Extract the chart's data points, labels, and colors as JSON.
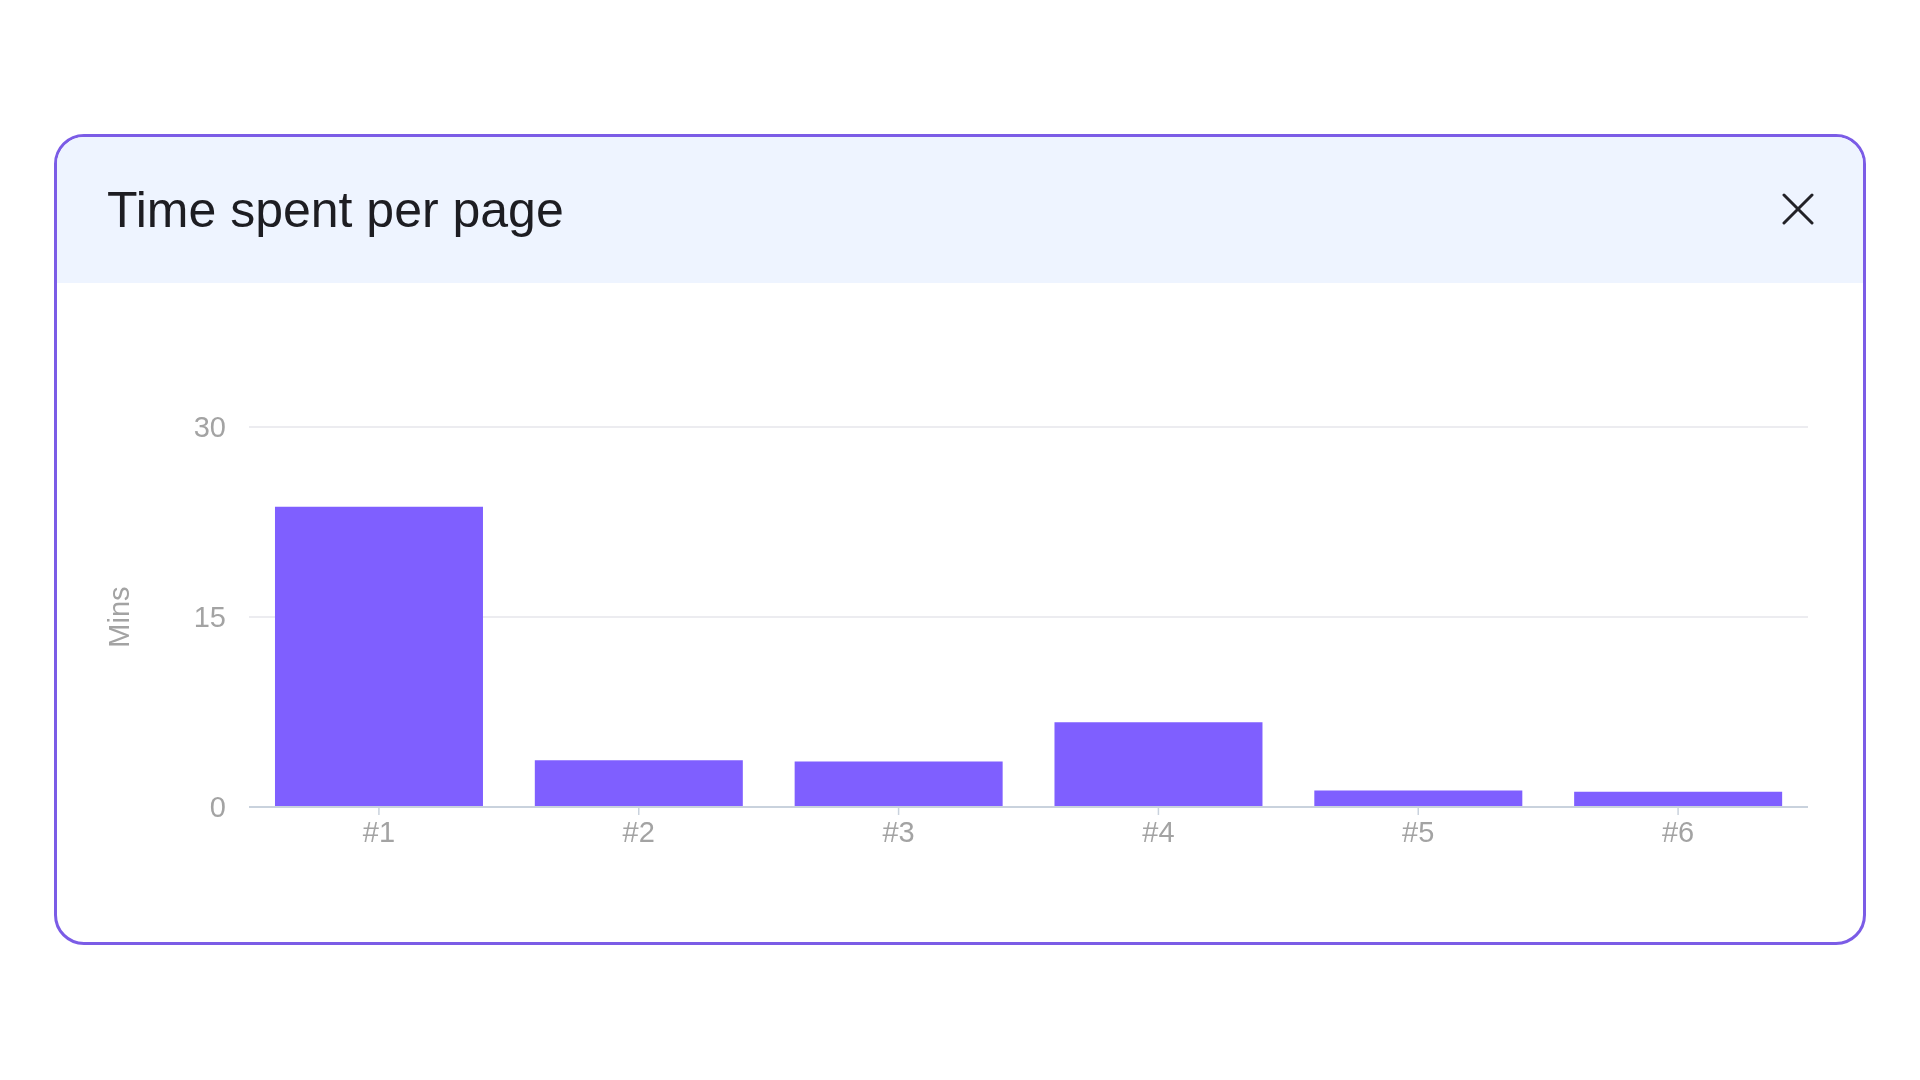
{
  "chart_data": {
    "type": "bar",
    "title": "Time spent per page",
    "ylabel": "Mins",
    "categories": [
      "#1",
      "#2",
      "#3",
      "#4",
      "#5",
      "#6"
    ],
    "values": [
      23.7,
      3.7,
      3.6,
      6.7,
      1.3,
      1.2
    ],
    "color": "#7f5fff",
    "ylim": [
      0,
      30
    ],
    "yticks": [
      0,
      15,
      30
    ],
    "grid": "y"
  }
}
